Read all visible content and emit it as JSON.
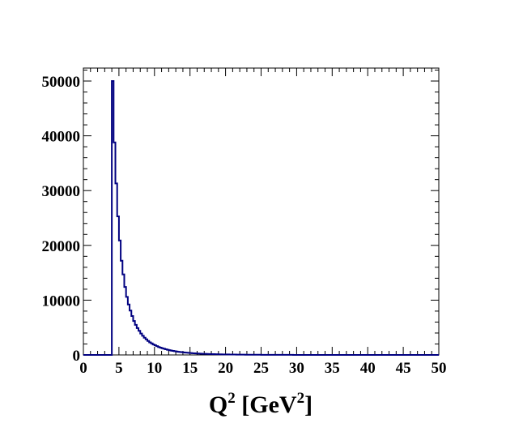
{
  "chart_data": {
    "type": "histogram",
    "title": "",
    "xlabel": {
      "base": "Q",
      "sup": "2",
      "mid": " [GeV",
      "sup2": "2",
      "end": "]"
    },
    "ylabel": "",
    "xlim": [
      0,
      50
    ],
    "ylim": [
      0,
      50000
    ],
    "x_ticks": [
      "0",
      "5",
      "10",
      "15",
      "20",
      "25",
      "30",
      "35",
      "40",
      "45",
      "50"
    ],
    "y_ticks": [
      "0",
      "10000",
      "20000",
      "30000",
      "40000",
      "50000"
    ],
    "bin_width": 0.25,
    "x_start": 4.0,
    "values": [
      50000,
      38800,
      31300,
      25300,
      20900,
      17200,
      14700,
      12400,
      10600,
      9200,
      8100,
      7100,
      6200,
      5500,
      4900,
      4400,
      3900,
      3500,
      3150,
      2850,
      2550,
      2300,
      2100,
      1900,
      1750,
      1600,
      1450,
      1330,
      1220,
      1120,
      1030,
      950,
      870,
      800,
      740,
      680,
      630,
      580,
      540,
      500,
      460,
      430,
      400,
      370,
      345,
      320,
      300,
      280,
      260,
      240,
      225,
      210,
      196,
      183,
      171,
      160,
      150,
      140,
      131,
      123,
      115,
      108,
      101,
      95,
      89,
      84,
      79,
      74,
      70,
      66,
      62,
      58,
      55,
      52,
      49,
      46,
      43,
      41,
      39,
      37,
      35,
      33,
      31,
      29,
      27,
      26,
      24,
      23,
      22,
      21,
      20,
      19,
      18,
      17,
      16,
      15,
      14,
      13,
      12,
      11,
      10,
      10,
      9,
      9,
      8,
      8,
      7,
      7,
      6,
      6,
      5,
      5,
      5,
      4,
      4,
      4,
      3,
      3,
      3,
      3,
      2,
      2,
      2,
      2,
      2,
      2,
      1,
      1,
      1,
      1,
      1,
      1,
      1,
      1,
      1,
      1,
      1,
      1,
      0,
      0,
      0,
      0,
      0,
      0,
      0,
      0,
      0,
      0,
      0,
      0,
      0,
      0,
      0,
      0,
      0,
      0,
      0,
      0,
      0,
      0,
      0,
      0,
      0,
      0,
      0,
      0,
      0,
      0,
      0,
      0,
      0,
      0,
      0,
      0,
      0,
      0
    ],
    "line_color": "#000080",
    "grid": false
  }
}
